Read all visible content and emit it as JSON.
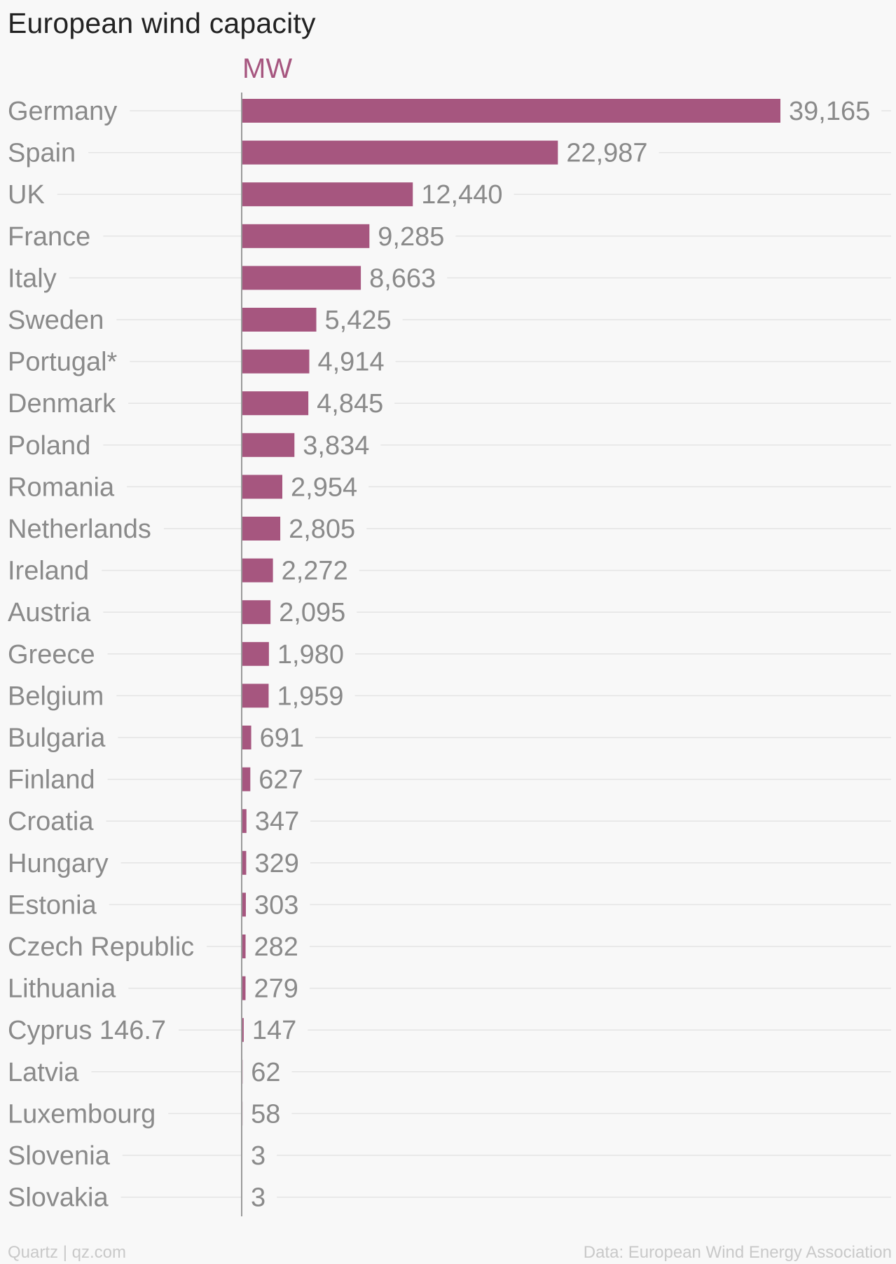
{
  "title": "European wind capacity",
  "unit_label": "MW",
  "footer_left": "Quartz | qz.com",
  "footer_right": "Data: European Wind Energy Association",
  "colors": {
    "bar": "#a6567f",
    "label": "#8a8a8a",
    "grid": "#e4e4e4",
    "axis": "#9a9a9a"
  },
  "chart_data": {
    "type": "bar",
    "orientation": "horizontal",
    "categories": [
      "Germany",
      "Spain",
      "UK",
      "France",
      "Italy",
      "Sweden",
      "Portugal*",
      "Denmark",
      "Poland",
      "Romania",
      "Netherlands",
      "Ireland",
      "Austria",
      "Greece",
      "Belgium",
      "Bulgaria",
      "Finland",
      "Croatia",
      "Hungary",
      "Estonia",
      "Czech Republic",
      "Lithuania",
      "Cyprus 146.7",
      "Latvia",
      "Luxembourg",
      "Slovenia",
      "Slovakia"
    ],
    "values": [
      39165,
      22987,
      12440,
      9285,
      8663,
      5425,
      4914,
      4845,
      3834,
      2954,
      2805,
      2272,
      2095,
      1980,
      1959,
      691,
      627,
      347,
      329,
      303,
      282,
      279,
      147,
      62,
      58,
      3,
      3
    ],
    "value_labels": [
      "39,165",
      "22,987",
      "12,440",
      "9,285",
      "8,663",
      "5,425",
      "4,914",
      "4,845",
      "3,834",
      "2,954",
      "2,805",
      "2,272",
      "2,095",
      "1,980",
      "1,959",
      "691",
      "627",
      "347",
      "329",
      "303",
      "282",
      "279",
      "147",
      "62",
      "58",
      "3",
      "3"
    ],
    "title": "European wind capacity",
    "xlabel": "MW",
    "ylabel": "",
    "xlim": [
      0,
      39165
    ],
    "grid": true,
    "legend": "none"
  }
}
